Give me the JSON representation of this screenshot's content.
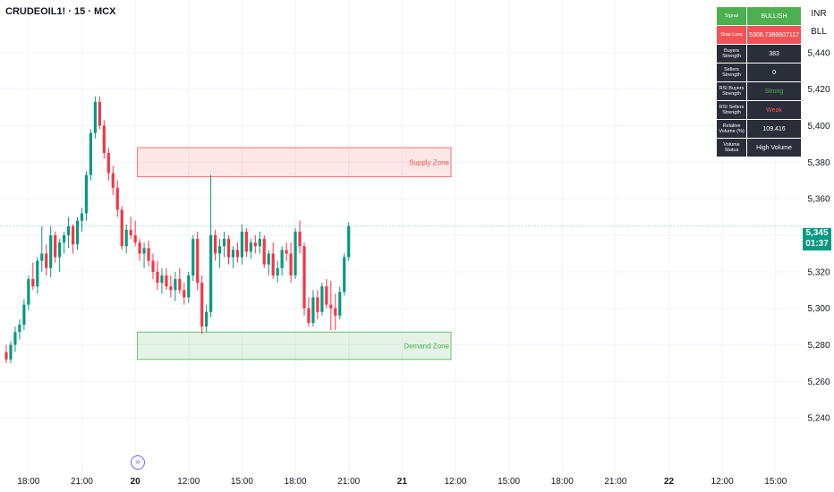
{
  "symbol_title": "CRUDEOIL1! · 15 · MCX",
  "currency": "INR",
  "unit": "BLL",
  "last_price": "5,345",
  "countdown": "01:37",
  "colors": {
    "up": "#089981",
    "down": "#f23645",
    "supply": "#f05458",
    "demand": "#4caf50"
  },
  "table": [
    {
      "label": "Signal",
      "value": "BULLISH",
      "style": "bull"
    },
    {
      "label": "Stop Loss",
      "value": "5308.7386607117",
      "style": "stop"
    },
    {
      "label": "Buyers Strength",
      "value": "383",
      "style": ""
    },
    {
      "label": "Sellers Strength",
      "value": "0",
      "style": ""
    },
    {
      "label": "RSI Buyers Strength",
      "value": "Strong",
      "style": "good"
    },
    {
      "label": "RSI Sellers Strength",
      "value": "Weak",
      "style": "bad"
    },
    {
      "label": "Relative Volume (%)",
      "value": "109.416",
      "style": ""
    },
    {
      "label": "Volume Status",
      "value": "High Volume",
      "style": ""
    }
  ],
  "chart_data": {
    "type": "candlestick",
    "y_ticks": [
      "5,440",
      "5,420",
      "5,400",
      "5,380",
      "5,360",
      "5,340",
      "5,320",
      "5,300",
      "5,280",
      "5,260",
      "5,240"
    ],
    "ylim": [
      5220,
      5460
    ],
    "x_ticks": [
      {
        "label": "18:00",
        "bar": 5
      },
      {
        "label": "21:00",
        "bar": 17
      },
      {
        "label": "20",
        "bar": 29
      },
      {
        "label": "12:00",
        "bar": 41
      },
      {
        "label": "15:00",
        "bar": 53
      },
      {
        "label": "18:00",
        "bar": 65
      },
      {
        "label": "21:00",
        "bar": 77
      },
      {
        "label": "21",
        "bar": 89
      },
      {
        "label": "12:00",
        "bar": 101
      },
      {
        "label": "15:00",
        "bar": 113
      },
      {
        "label": "18:00",
        "bar": 125
      },
      {
        "label": "21:00",
        "bar": 137
      },
      {
        "label": "22",
        "bar": 149
      },
      {
        "label": "12:00",
        "bar": 161
      },
      {
        "label": "15:00",
        "bar": 173
      }
    ],
    "zones": [
      {
        "name": "Supply Zone",
        "from_bar": 30,
        "to_bar": 100,
        "low": 5372,
        "high": 5388
      },
      {
        "name": "Demand Zone",
        "from_bar": 30,
        "to_bar": 100,
        "low": 5272,
        "high": 5287
      }
    ],
    "candles": [
      [
        5276,
        5280,
        5270,
        5272
      ],
      [
        5272,
        5282,
        5270,
        5280
      ],
      [
        5280,
        5290,
        5276,
        5287
      ],
      [
        5287,
        5294,
        5283,
        5291
      ],
      [
        5291,
        5305,
        5288,
        5302
      ],
      [
        5302,
        5318,
        5299,
        5316
      ],
      [
        5316,
        5325,
        5310,
        5312
      ],
      [
        5312,
        5328,
        5308,
        5326
      ],
      [
        5326,
        5345,
        5320,
        5330
      ],
      [
        5330,
        5335,
        5318,
        5322
      ],
      [
        5322,
        5345,
        5317,
        5340
      ],
      [
        5340,
        5342,
        5325,
        5328
      ],
      [
        5328,
        5338,
        5320,
        5336
      ],
      [
        5336,
        5342,
        5330,
        5340
      ],
      [
        5340,
        5350,
        5333,
        5345
      ],
      [
        5345,
        5346,
        5330,
        5335
      ],
      [
        5335,
        5350,
        5332,
        5348
      ],
      [
        5348,
        5355,
        5342,
        5352
      ],
      [
        5352,
        5375,
        5348,
        5373
      ],
      [
        5373,
        5398,
        5370,
        5396
      ],
      [
        5396,
        5416,
        5393,
        5413
      ],
      [
        5413,
        5416,
        5398,
        5400
      ],
      [
        5400,
        5403,
        5382,
        5385
      ],
      [
        5385,
        5388,
        5370,
        5374
      ],
      [
        5374,
        5378,
        5362,
        5366
      ],
      [
        5366,
        5370,
        5350,
        5354
      ],
      [
        5354,
        5356,
        5332,
        5334
      ],
      [
        5334,
        5346,
        5330,
        5343
      ],
      [
        5343,
        5350,
        5338,
        5340
      ],
      [
        5340,
        5348,
        5334,
        5336
      ],
      [
        5336,
        5338,
        5326,
        5330
      ],
      [
        5330,
        5336,
        5322,
        5333
      ],
      [
        5333,
        5337,
        5323,
        5326
      ],
      [
        5326,
        5330,
        5316,
        5320
      ],
      [
        5320,
        5326,
        5310,
        5314
      ],
      [
        5314,
        5322,
        5308,
        5318
      ],
      [
        5318,
        5322,
        5310,
        5312
      ],
      [
        5312,
        5318,
        5306,
        5310
      ],
      [
        5310,
        5320,
        5304,
        5316
      ],
      [
        5316,
        5322,
        5308,
        5310
      ],
      [
        5310,
        5314,
        5302,
        5306
      ],
      [
        5306,
        5320,
        5303,
        5318
      ],
      [
        5318,
        5340,
        5315,
        5338
      ],
      [
        5338,
        5342,
        5310,
        5314
      ],
      [
        5314,
        5318,
        5286,
        5290
      ],
      [
        5290,
        5302,
        5287,
        5298
      ],
      [
        5298,
        5373,
        5295,
        5340
      ],
      [
        5340,
        5343,
        5326,
        5330
      ],
      [
        5330,
        5338,
        5322,
        5334
      ],
      [
        5334,
        5342,
        5328,
        5338
      ],
      [
        5338,
        5340,
        5324,
        5328
      ],
      [
        5328,
        5334,
        5322,
        5332
      ],
      [
        5332,
        5336,
        5325,
        5328
      ],
      [
        5328,
        5346,
        5324,
        5342
      ],
      [
        5342,
        5344,
        5328,
        5331
      ],
      [
        5331,
        5338,
        5327,
        5336
      ],
      [
        5336,
        5340,
        5330,
        5334
      ],
      [
        5334,
        5342,
        5330,
        5338
      ],
      [
        5338,
        5340,
        5322,
        5324
      ],
      [
        5324,
        5332,
        5318,
        5330
      ],
      [
        5330,
        5336,
        5316,
        5318
      ],
      [
        5318,
        5326,
        5314,
        5322
      ],
      [
        5322,
        5334,
        5318,
        5332
      ],
      [
        5332,
        5336,
        5326,
        5330
      ],
      [
        5330,
        5336,
        5314,
        5318
      ],
      [
        5318,
        5344,
        5316,
        5342
      ],
      [
        5342,
        5348,
        5330,
        5334
      ],
      [
        5334,
        5336,
        5296,
        5300
      ],
      [
        5300,
        5306,
        5290,
        5292
      ],
      [
        5292,
        5310,
        5290,
        5306
      ],
      [
        5306,
        5310,
        5294,
        5298
      ],
      [
        5298,
        5314,
        5296,
        5312
      ],
      [
        5312,
        5316,
        5300,
        5302
      ],
      [
        5302,
        5315,
        5288,
        5300
      ],
      [
        5300,
        5308,
        5288,
        5296
      ],
      [
        5296,
        5312,
        5294,
        5309
      ],
      [
        5309,
        5330,
        5307,
        5328
      ],
      [
        5328,
        5347,
        5326,
        5345
      ]
    ]
  }
}
